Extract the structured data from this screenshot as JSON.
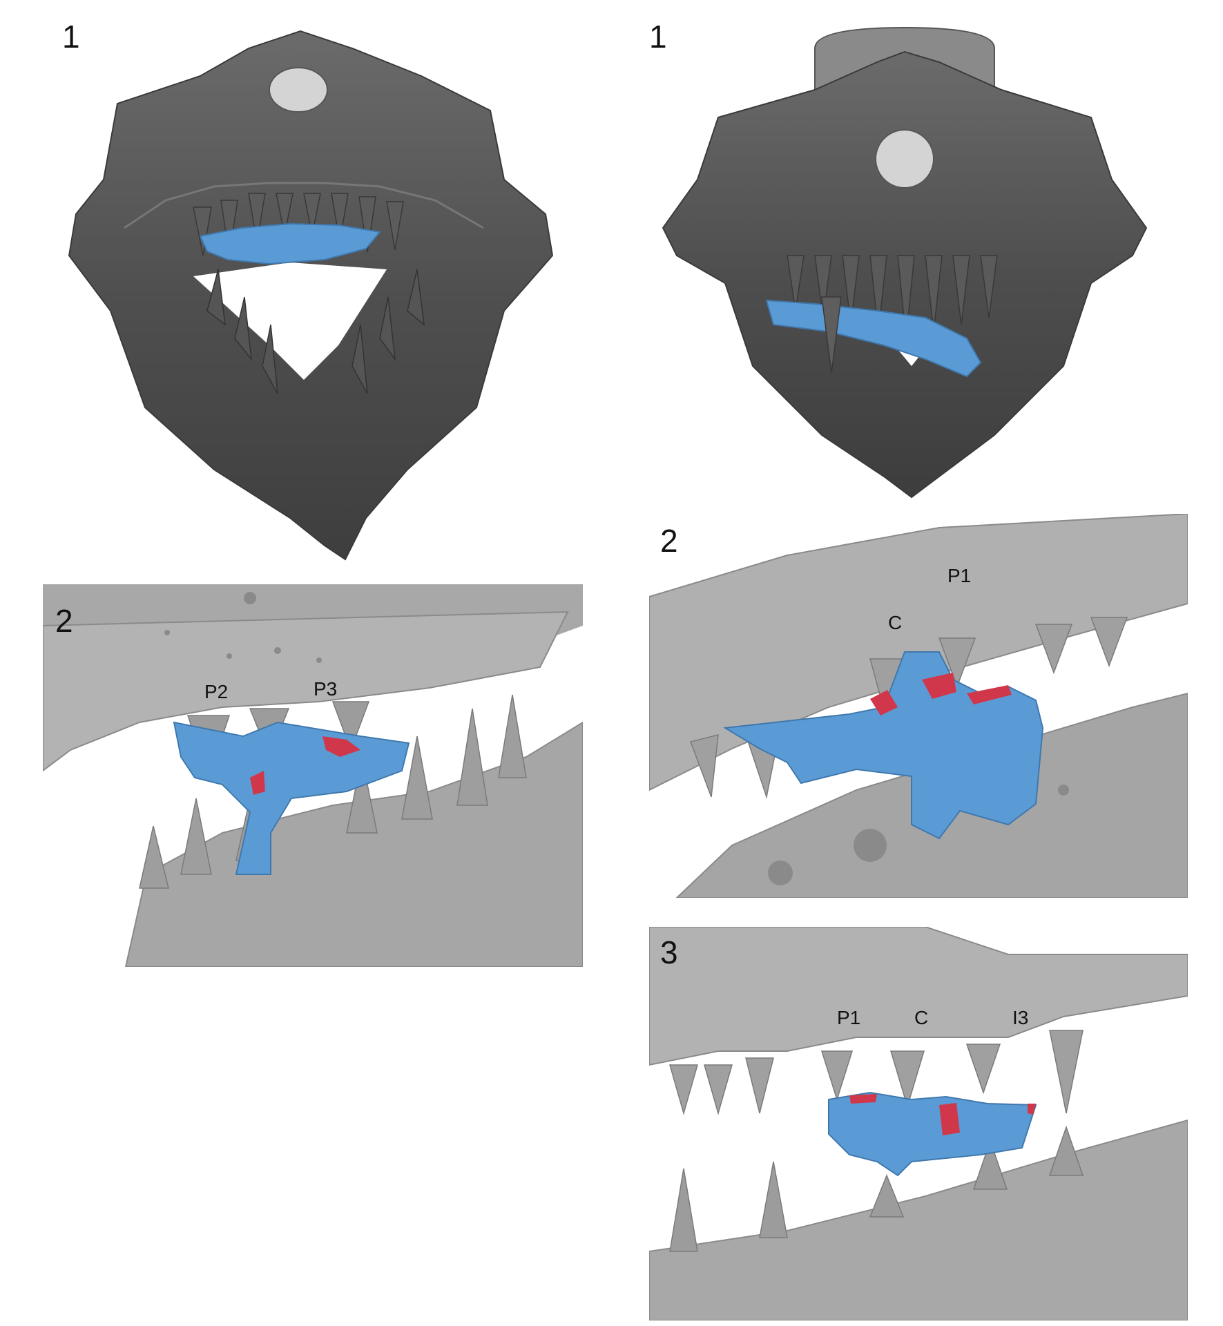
{
  "panels": {
    "left": {
      "view1": {
        "number": "1"
      },
      "view2": {
        "number": "2",
        "teeth": [
          "P2",
          "P3"
        ]
      }
    },
    "right": {
      "view1": {
        "number": "1"
      },
      "view2": {
        "number": "2",
        "teeth": [
          "P1",
          "C"
        ]
      },
      "view3": {
        "number": "3",
        "teeth": [
          "P1",
          "C",
          "I3"
        ]
      }
    }
  },
  "colors": {
    "background": "#ffffff",
    "skull_dark": "#4a4a4a",
    "skull_light": "#a9a9a9",
    "fragment_blue": "#5b9bd5",
    "contact_red": "#d1374a"
  }
}
